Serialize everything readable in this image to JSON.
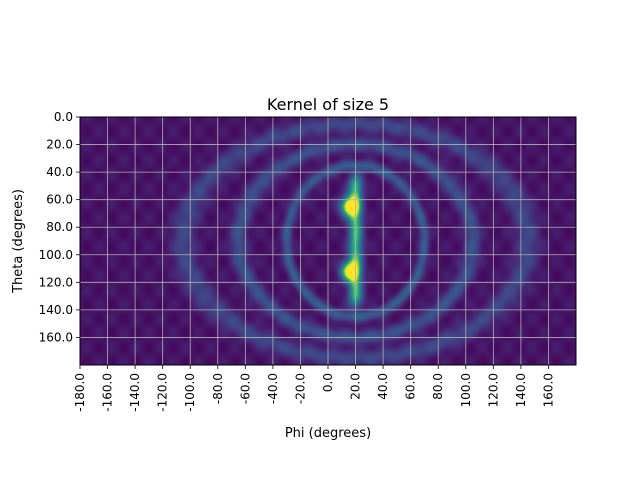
{
  "chart_data": {
    "type": "heatmap",
    "title": "Kernel of size 5",
    "xlabel": "Phi (degrees)",
    "ylabel": "Theta (degrees)",
    "xlim": [
      -180,
      180
    ],
    "ylim": [
      180,
      0
    ],
    "x_ticks": [
      -180,
      -160,
      -140,
      -120,
      -100,
      -80,
      -60,
      -40,
      -20,
      0,
      20,
      40,
      60,
      80,
      100,
      120,
      140,
      160
    ],
    "x_tick_labels": [
      "-180.0",
      "-160.0",
      "-140.0",
      "-120.0",
      "-100.0",
      "-80.0",
      "-60.0",
      "-40.0",
      "-20.0",
      "0.0",
      "20.0",
      "40.0",
      "60.0",
      "80.0",
      "100.0",
      "120.0",
      "140.0",
      "160.0"
    ],
    "y_ticks": [
      0,
      20,
      40,
      60,
      80,
      100,
      120,
      140,
      160
    ],
    "y_tick_labels": [
      "0.0",
      "20.0",
      "40.0",
      "60.0",
      "80.0",
      "100.0",
      "120.0",
      "140.0",
      "160.0"
    ],
    "grid": true,
    "colormap": "viridis",
    "features": [
      {
        "kind": "peak",
        "phi": 15,
        "theta": 65,
        "intensity": 0.95
      },
      {
        "kind": "peak",
        "phi": 15,
        "theta": 112,
        "intensity": 0.9
      },
      {
        "kind": "ridge",
        "phi": 20,
        "theta_range": [
          50,
          130
        ],
        "intensity": 0.7
      },
      {
        "kind": "ring",
        "center_phi": 20,
        "center_theta": 90,
        "radius_phi": 50,
        "radius_theta": 55,
        "intensity": 0.3
      },
      {
        "kind": "ring",
        "center_phi": 20,
        "center_theta": 90,
        "radius_phi": 85,
        "radius_theta": 70,
        "intensity": 0.25
      },
      {
        "kind": "ring",
        "center_phi": 20,
        "center_theta": 90,
        "radius_phi": 125,
        "radius_theta": 85,
        "intensity": 0.2
      }
    ]
  }
}
